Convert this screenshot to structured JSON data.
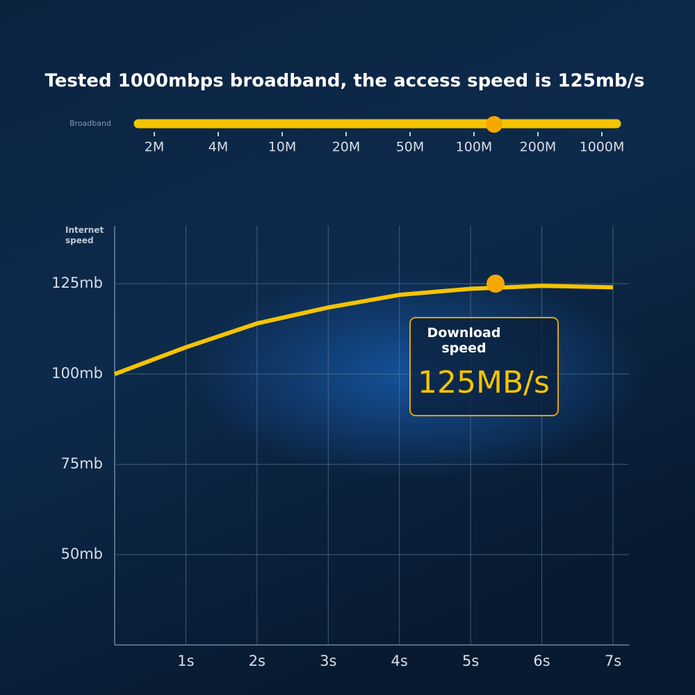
{
  "chart_data": {
    "type": "line",
    "title": "Tested 1000mbps broadband, the access speed is 125mb/s",
    "broadband": {
      "label": "Broadband",
      "categories": [
        "2M",
        "4M",
        "10M",
        "20M",
        "50M",
        "100M",
        "200M",
        "1000M"
      ]
    },
    "ylabel": "Internet speed",
    "x": [
      0,
      1,
      2,
      3,
      4,
      5,
      6,
      7
    ],
    "series": [
      {
        "name": "Internet speed",
        "color": "#f5c400",
        "values": [
          100,
          107.4,
          114,
          118.4,
          121.9,
          123.6,
          124.4,
          124
        ]
      }
    ],
    "marker": {
      "x": 5.35,
      "y": 125
    },
    "xlim": [
      0,
      7
    ],
    "xticks": [
      {
        "value": 1,
        "label": "1s"
      },
      {
        "value": 2,
        "label": "2s"
      },
      {
        "value": 3,
        "label": "3s"
      },
      {
        "value": 4,
        "label": "4s"
      },
      {
        "value": 5,
        "label": "5s"
      },
      {
        "value": 6,
        "label": "6s"
      },
      {
        "value": 7,
        "label": "7s"
      }
    ],
    "ylim": [
      25,
      141
    ],
    "yticks": [
      {
        "value": 50,
        "label": "50mb"
      },
      {
        "value": 75,
        "label": "75mb"
      },
      {
        "value": 100,
        "label": "100mb"
      },
      {
        "value": 125,
        "label": "125mb"
      }
    ],
    "grid": true,
    "annotation": {
      "title": "Download speed",
      "value": "125MB/s"
    }
  }
}
